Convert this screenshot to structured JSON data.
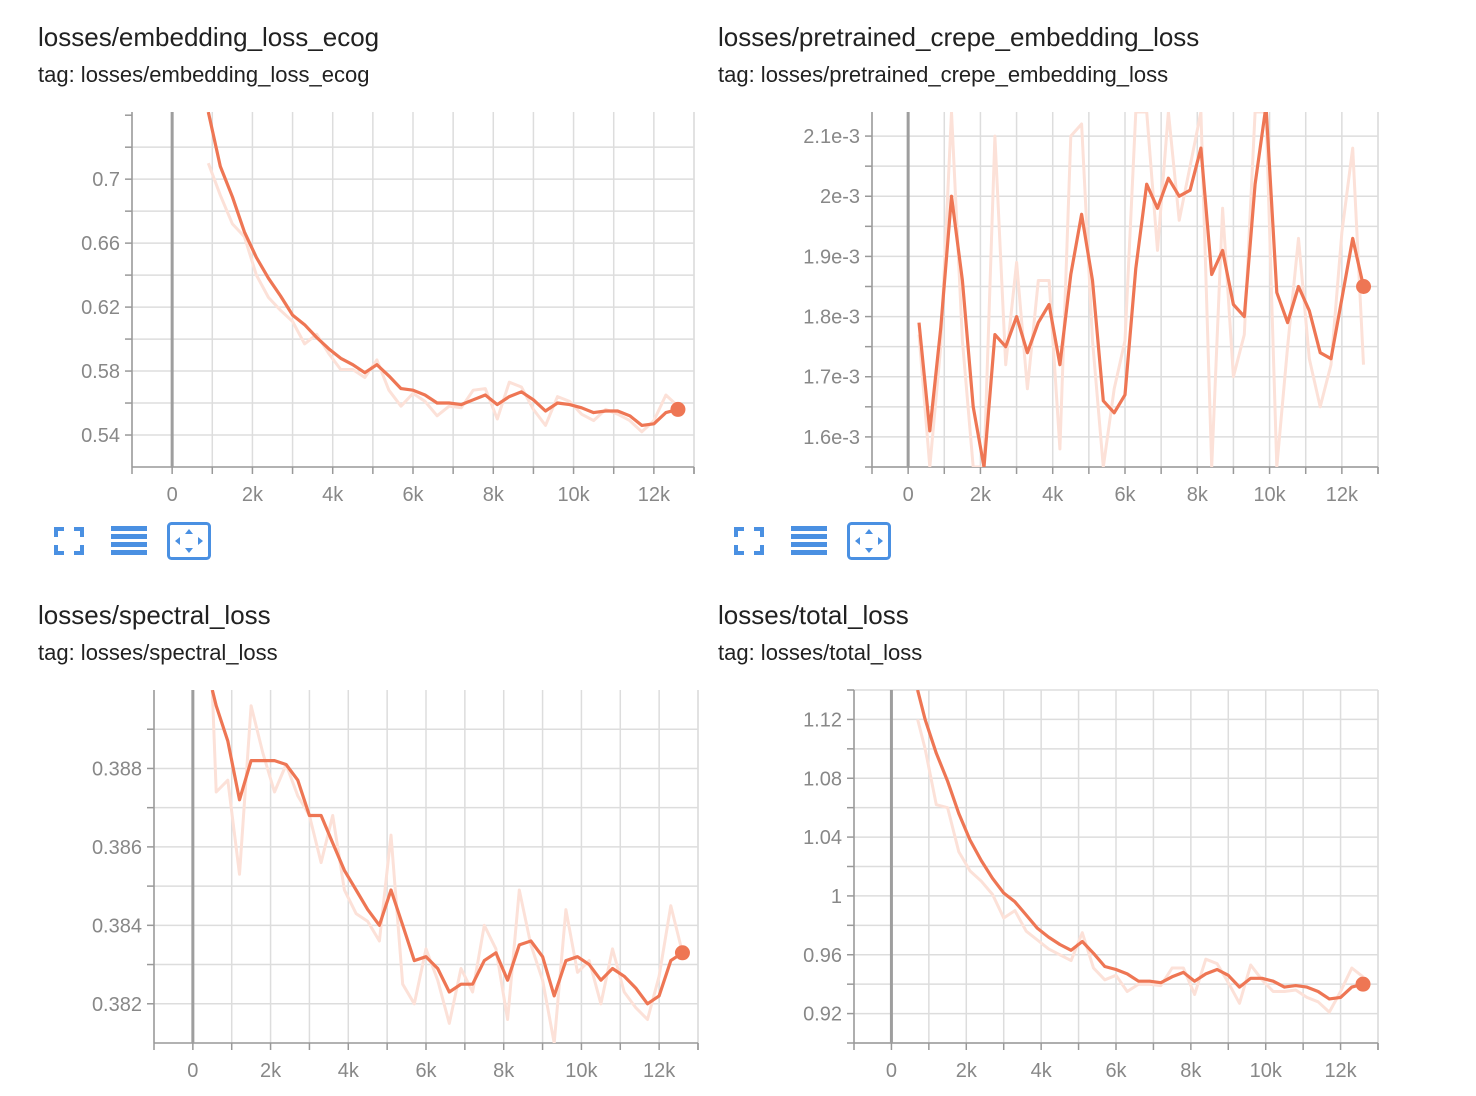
{
  "colors": {
    "smoothed": "#EE7654",
    "raw": "#FCE1D8",
    "grid": "#DDDDDD",
    "axis": "#999999",
    "zero_line": "#9E9E9E",
    "tick_text": "#888888",
    "icon": "#4A90E2"
  },
  "toolbar_icons": [
    "fullscreen-icon",
    "toggle-log-scale-icon",
    "fit-domain-icon"
  ],
  "chart_data": [
    {
      "type": "line",
      "title": "losses/embedding_loss_ecog",
      "tag": "tag: losses/embedding_loss_ecog",
      "xlim": [
        -1000,
        13000
      ],
      "ylim": [
        0.52,
        0.742
      ],
      "x_ticks": [
        0,
        2000,
        4000,
        6000,
        8000,
        10000,
        12000
      ],
      "x_tick_labels": [
        "0",
        "2k",
        "4k",
        "6k",
        "8k",
        "10k",
        "12k"
      ],
      "y_ticks": [
        0.54,
        0.58,
        0.62,
        0.66,
        0.7
      ],
      "y_tick_labels": [
        "0.54",
        "0.58",
        "0.62",
        "0.66",
        "0.7"
      ],
      "series": [
        {
          "role": "smoothed",
          "x": [
            900,
            1200,
            1500,
            1800,
            2100,
            2400,
            2700,
            3000,
            3300,
            3600,
            3900,
            4200,
            4500,
            4800,
            5100,
            5400,
            5700,
            6000,
            6300,
            6600,
            6900,
            7200,
            7500,
            7800,
            8100,
            8400,
            8700,
            9000,
            9300,
            9600,
            9900,
            10200,
            10500,
            10800,
            11100,
            11400,
            11700,
            12000,
            12300,
            12600
          ],
          "y": [
            0.742,
            0.708,
            0.689,
            0.667,
            0.651,
            0.638,
            0.627,
            0.615,
            0.609,
            0.601,
            0.594,
            0.588,
            0.584,
            0.579,
            0.584,
            0.577,
            0.569,
            0.568,
            0.565,
            0.56,
            0.56,
            0.559,
            0.562,
            0.565,
            0.559,
            0.564,
            0.567,
            0.562,
            0.555,
            0.56,
            0.559,
            0.557,
            0.554,
            0.555,
            0.555,
            0.552,
            0.546,
            0.547,
            0.554,
            0.556
          ]
        },
        {
          "role": "raw",
          "x": [
            900,
            1200,
            1500,
            1800,
            2100,
            2400,
            2700,
            3000,
            3300,
            3600,
            3900,
            4200,
            4500,
            4800,
            5100,
            5400,
            5700,
            6000,
            6300,
            6600,
            6900,
            7200,
            7500,
            7800,
            8100,
            8400,
            8700,
            9000,
            9300,
            9600,
            9900,
            10200,
            10500,
            10800,
            11100,
            11400,
            11700,
            12000,
            12300,
            12600
          ],
          "y": [
            0.71,
            0.69,
            0.672,
            0.664,
            0.64,
            0.626,
            0.618,
            0.611,
            0.597,
            0.603,
            0.591,
            0.581,
            0.581,
            0.576,
            0.587,
            0.568,
            0.558,
            0.566,
            0.561,
            0.552,
            0.558,
            0.557,
            0.568,
            0.569,
            0.55,
            0.573,
            0.57,
            0.556,
            0.546,
            0.564,
            0.561,
            0.553,
            0.549,
            0.556,
            0.553,
            0.549,
            0.542,
            0.549,
            0.565,
            0.558
          ]
        }
      ]
    },
    {
      "type": "line",
      "title": "losses/pretrained_crepe_embedding_loss",
      "tag": "tag: losses/pretrained_crepe_embedding_loss",
      "xlim": [
        -1000,
        13000
      ],
      "ylim": [
        0.00155,
        0.00214
      ],
      "x_ticks": [
        0,
        2000,
        4000,
        6000,
        8000,
        10000,
        12000
      ],
      "x_tick_labels": [
        "0",
        "2k",
        "4k",
        "6k",
        "8k",
        "10k",
        "12k"
      ],
      "y_ticks": [
        0.0016,
        0.0017,
        0.0018,
        0.0019,
        0.002,
        0.0021
      ],
      "y_tick_labels": [
        "1.6e-3",
        "1.7e-3",
        "1.8e-3",
        "1.9e-3",
        "2e-3",
        "2.1e-3"
      ],
      "series": [
        {
          "role": "smoothed",
          "x": [
            300,
            600,
            900,
            1200,
            1500,
            1800,
            2100,
            2400,
            2700,
            3000,
            3300,
            3600,
            3900,
            4200,
            4500,
            4800,
            5100,
            5400,
            5700,
            6000,
            6300,
            6600,
            6900,
            7200,
            7500,
            7800,
            8100,
            8400,
            8700,
            9000,
            9300,
            9600,
            9900,
            10200,
            10500,
            10800,
            11100,
            11400,
            11700,
            12000,
            12300,
            12600
          ],
          "y": [
            0.00179,
            0.00161,
            0.00178,
            0.002,
            0.00186,
            0.00165,
            0.00155,
            0.00177,
            0.00175,
            0.0018,
            0.00174,
            0.00179,
            0.00182,
            0.00172,
            0.00187,
            0.00197,
            0.00186,
            0.00166,
            0.00164,
            0.00167,
            0.00188,
            0.00202,
            0.00198,
            0.00203,
            0.002,
            0.00201,
            0.00208,
            0.00187,
            0.00191,
            0.00182,
            0.0018,
            0.00202,
            0.00215,
            0.00184,
            0.00179,
            0.00185,
            0.00181,
            0.00174,
            0.00173,
            0.00183,
            0.00193,
            0.00185
          ]
        },
        {
          "role": "raw",
          "x": [
            300,
            600,
            900,
            1200,
            1500,
            1800,
            2100,
            2400,
            2700,
            3000,
            3300,
            3600,
            3900,
            4200,
            4500,
            4800,
            5100,
            5400,
            5700,
            6000,
            6300,
            6600,
            6900,
            7200,
            7500,
            7800,
            8100,
            8400,
            8700,
            9000,
            9300,
            9600,
            9900,
            10200,
            10500,
            10800,
            11100,
            11400,
            11700,
            12000,
            12300,
            12600
          ],
          "y": [
            0.00177,
            0.00155,
            0.00175,
            0.00214,
            0.00176,
            0.00155,
            0.00155,
            0.0021,
            0.00172,
            0.00189,
            0.00168,
            0.00186,
            0.00186,
            0.00158,
            0.0021,
            0.00212,
            0.00176,
            0.00155,
            0.00168,
            0.00176,
            0.00214,
            0.00214,
            0.00191,
            0.00214,
            0.00196,
            0.00205,
            0.00214,
            0.00155,
            0.00198,
            0.0017,
            0.00177,
            0.00214,
            0.00214,
            0.00155,
            0.00175,
            0.00193,
            0.00173,
            0.00165,
            0.00172,
            0.00194,
            0.00208,
            0.00172
          ]
        }
      ]
    },
    {
      "type": "line",
      "title": "losses/spectral_loss",
      "tag": "tag: losses/spectral_loss",
      "xlim": [
        -1000,
        13000
      ],
      "ylim": [
        0.381,
        0.39
      ],
      "x_ticks": [
        0,
        2000,
        4000,
        6000,
        8000,
        10000,
        12000
      ],
      "x_tick_labels": [
        "0",
        "2k",
        "4k",
        "6k",
        "8k",
        "10k",
        "12k"
      ],
      "y_ticks": [
        0.382,
        0.384,
        0.386,
        0.388
      ],
      "y_tick_labels": [
        "0.382",
        "0.384",
        "0.386",
        "0.388"
      ],
      "series": [
        {
          "role": "smoothed",
          "x": [
            500,
            600,
            900,
            1200,
            1500,
            1800,
            2100,
            2400,
            2700,
            3000,
            3300,
            3600,
            3900,
            4200,
            4500,
            4800,
            5100,
            5400,
            5700,
            6000,
            6300,
            6600,
            6900,
            7200,
            7500,
            7800,
            8100,
            8400,
            8700,
            9000,
            9300,
            9600,
            9900,
            10200,
            10500,
            10800,
            11100,
            11400,
            11700,
            12000,
            12300,
            12600
          ],
          "y": [
            0.39,
            0.3896,
            0.3887,
            0.3872,
            0.3882,
            0.3882,
            0.3882,
            0.3881,
            0.3877,
            0.3868,
            0.3868,
            0.3861,
            0.3854,
            0.3849,
            0.3844,
            0.384,
            0.3849,
            0.384,
            0.3831,
            0.3832,
            0.3829,
            0.3823,
            0.3825,
            0.3825,
            0.3831,
            0.3833,
            0.3826,
            0.3835,
            0.3836,
            0.3832,
            0.3822,
            0.3831,
            0.3832,
            0.383,
            0.3826,
            0.3829,
            0.3827,
            0.3824,
            0.382,
            0.3822,
            0.3831,
            0.3833
          ]
        },
        {
          "role": "raw",
          "x": [
            500,
            600,
            900,
            1200,
            1500,
            1800,
            2100,
            2400,
            2700,
            3000,
            3300,
            3600,
            3900,
            4200,
            4500,
            4800,
            5100,
            5400,
            5700,
            6000,
            6300,
            6600,
            6900,
            7200,
            7500,
            7800,
            8100,
            8400,
            8700,
            9000,
            9300,
            9600,
            9900,
            10200,
            10500,
            10800,
            11100,
            11400,
            11700,
            12000,
            12300,
            12600
          ],
          "y": [
            0.39,
            0.3874,
            0.3877,
            0.3853,
            0.3896,
            0.3884,
            0.3874,
            0.3881,
            0.3873,
            0.3868,
            0.3856,
            0.3868,
            0.3849,
            0.3843,
            0.3841,
            0.3836,
            0.3863,
            0.3825,
            0.382,
            0.3834,
            0.3826,
            0.3815,
            0.3829,
            0.3823,
            0.384,
            0.3834,
            0.3816,
            0.3849,
            0.3835,
            0.3826,
            0.381,
            0.3844,
            0.3828,
            0.3831,
            0.382,
            0.3834,
            0.3823,
            0.3819,
            0.3816,
            0.3827,
            0.3845,
            0.3833
          ]
        }
      ]
    },
    {
      "type": "line",
      "title": "losses/total_loss",
      "tag": "tag: losses/total_loss",
      "xlim": [
        -1000,
        13000
      ],
      "ylim": [
        0.9,
        1.14
      ],
      "x_ticks": [
        0,
        2000,
        4000,
        6000,
        8000,
        10000,
        12000
      ],
      "x_tick_labels": [
        "0",
        "2k",
        "4k",
        "6k",
        "8k",
        "10k",
        "12k"
      ],
      "y_ticks": [
        0.92,
        0.96,
        1.0,
        1.04,
        1.08,
        1.12
      ],
      "y_tick_labels": [
        "0.92",
        "0.96",
        "1",
        "1.04",
        "1.08",
        "1.12"
      ],
      "series": [
        {
          "role": "smoothed",
          "x": [
            700,
            900,
            1200,
            1500,
            1800,
            2100,
            2400,
            2700,
            3000,
            3300,
            3600,
            3900,
            4200,
            4500,
            4800,
            5100,
            5400,
            5700,
            6000,
            6300,
            6600,
            6900,
            7200,
            7500,
            7800,
            8100,
            8400,
            8700,
            9000,
            9300,
            9600,
            9900,
            10200,
            10500,
            10800,
            11100,
            11400,
            11700,
            12000,
            12300,
            12600
          ],
          "y": [
            1.14,
            1.12,
            1.097,
            1.078,
            1.056,
            1.038,
            1.024,
            1.012,
            1.002,
            0.996,
            0.987,
            0.978,
            0.972,
            0.967,
            0.963,
            0.969,
            0.961,
            0.952,
            0.95,
            0.947,
            0.942,
            0.942,
            0.941,
            0.945,
            0.948,
            0.942,
            0.947,
            0.95,
            0.946,
            0.938,
            0.944,
            0.944,
            0.942,
            0.938,
            0.939,
            0.938,
            0.935,
            0.93,
            0.931,
            0.938,
            0.94
          ]
        },
        {
          "role": "raw",
          "x": [
            700,
            900,
            1200,
            1500,
            1800,
            2100,
            2400,
            2700,
            3000,
            3300,
            3600,
            3900,
            4200,
            4500,
            4800,
            5100,
            5400,
            5700,
            6000,
            6300,
            6600,
            6900,
            7200,
            7500,
            7800,
            8100,
            8400,
            8700,
            9000,
            9300,
            9600,
            9900,
            10200,
            10500,
            10800,
            11100,
            11400,
            11700,
            12000,
            12300,
            12600
          ],
          "y": [
            1.12,
            1.1,
            1.062,
            1.06,
            1.03,
            1.017,
            1.01,
            1.001,
            0.985,
            0.99,
            0.976,
            0.97,
            0.964,
            0.96,
            0.956,
            0.975,
            0.951,
            0.943,
            0.946,
            0.935,
            0.94,
            0.94,
            0.939,
            0.951,
            0.951,
            0.933,
            0.957,
            0.954,
            0.941,
            0.927,
            0.953,
            0.943,
            0.935,
            0.935,
            0.936,
            0.931,
            0.928,
            0.921,
            0.935,
            0.951,
            0.945
          ]
        }
      ]
    }
  ]
}
